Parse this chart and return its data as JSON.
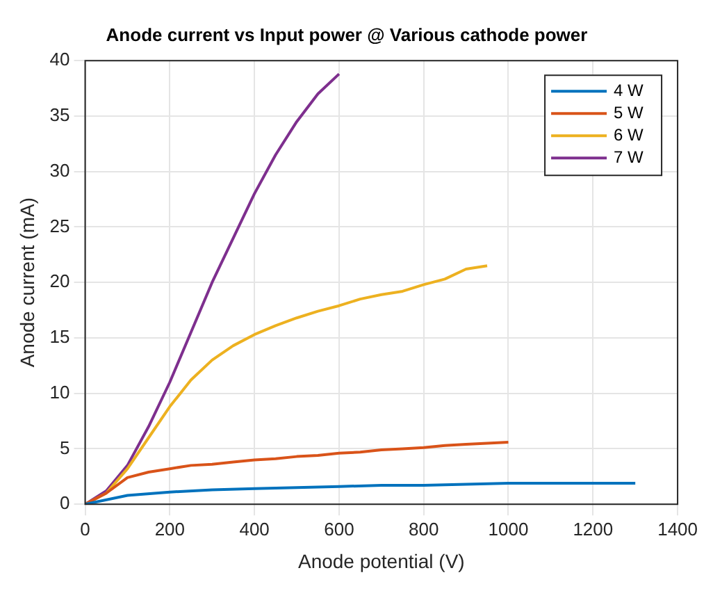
{
  "chart_data": {
    "type": "line",
    "title": "Anode current vs Input power @ Various cathode power",
    "xlabel": "Anode potential (V)",
    "ylabel": "Anode current (mA)",
    "xlim": [
      0,
      1400
    ],
    "xticks": [
      0,
      200,
      400,
      600,
      800,
      1000,
      1200,
      1400
    ],
    "ylim": [
      0,
      40
    ],
    "yticks": [
      0,
      5,
      10,
      15,
      20,
      25,
      30,
      35,
      40
    ],
    "grid": true,
    "legend": "top right",
    "marker": "none",
    "line_style": "solid",
    "series": [
      {
        "name": "4 W",
        "color": "#0072bd",
        "x": [
          0,
          100,
          200,
          300,
          400,
          500,
          600,
          700,
          800,
          900,
          1000,
          1100,
          1200,
          1300
        ],
        "values": [
          0,
          0.8,
          1.1,
          1.3,
          1.4,
          1.5,
          1.6,
          1.7,
          1.7,
          1.8,
          1.9,
          1.9,
          1.9,
          1.9
        ]
      },
      {
        "name": "5 W",
        "color": "#d95319",
        "x": [
          0,
          50,
          100,
          150,
          200,
          250,
          300,
          350,
          400,
          450,
          500,
          550,
          600,
          650,
          700,
          750,
          800,
          850,
          900,
          950,
          1000
        ],
        "values": [
          0,
          1,
          2.4,
          2.9,
          3.2,
          3.5,
          3.6,
          3.8,
          4.0,
          4.1,
          4.3,
          4.4,
          4.6,
          4.7,
          4.9,
          5.0,
          5.1,
          5.3,
          5.4,
          5.5,
          5.6
        ]
      },
      {
        "name": "6 W",
        "color": "#edb120",
        "x": [
          0,
          50,
          100,
          150,
          200,
          250,
          300,
          350,
          400,
          450,
          500,
          550,
          600,
          650,
          700,
          750,
          800,
          850,
          900,
          950
        ],
        "values": [
          0,
          1,
          3.2,
          6,
          8.8,
          11.2,
          13,
          14.3,
          15.3,
          16.1,
          16.8,
          17.4,
          17.9,
          18.5,
          18.9,
          19.2,
          19.8,
          20.3,
          21.2,
          21.5
        ]
      },
      {
        "name": "7 W",
        "color": "#7e2f8e",
        "x": [
          0,
          50,
          100,
          150,
          200,
          250,
          300,
          350,
          400,
          450,
          500,
          550,
          600
        ],
        "values": [
          0,
          1.2,
          3.5,
          7,
          11,
          15.5,
          20,
          24,
          28,
          31.5,
          34.5,
          37,
          38.8
        ]
      }
    ]
  }
}
